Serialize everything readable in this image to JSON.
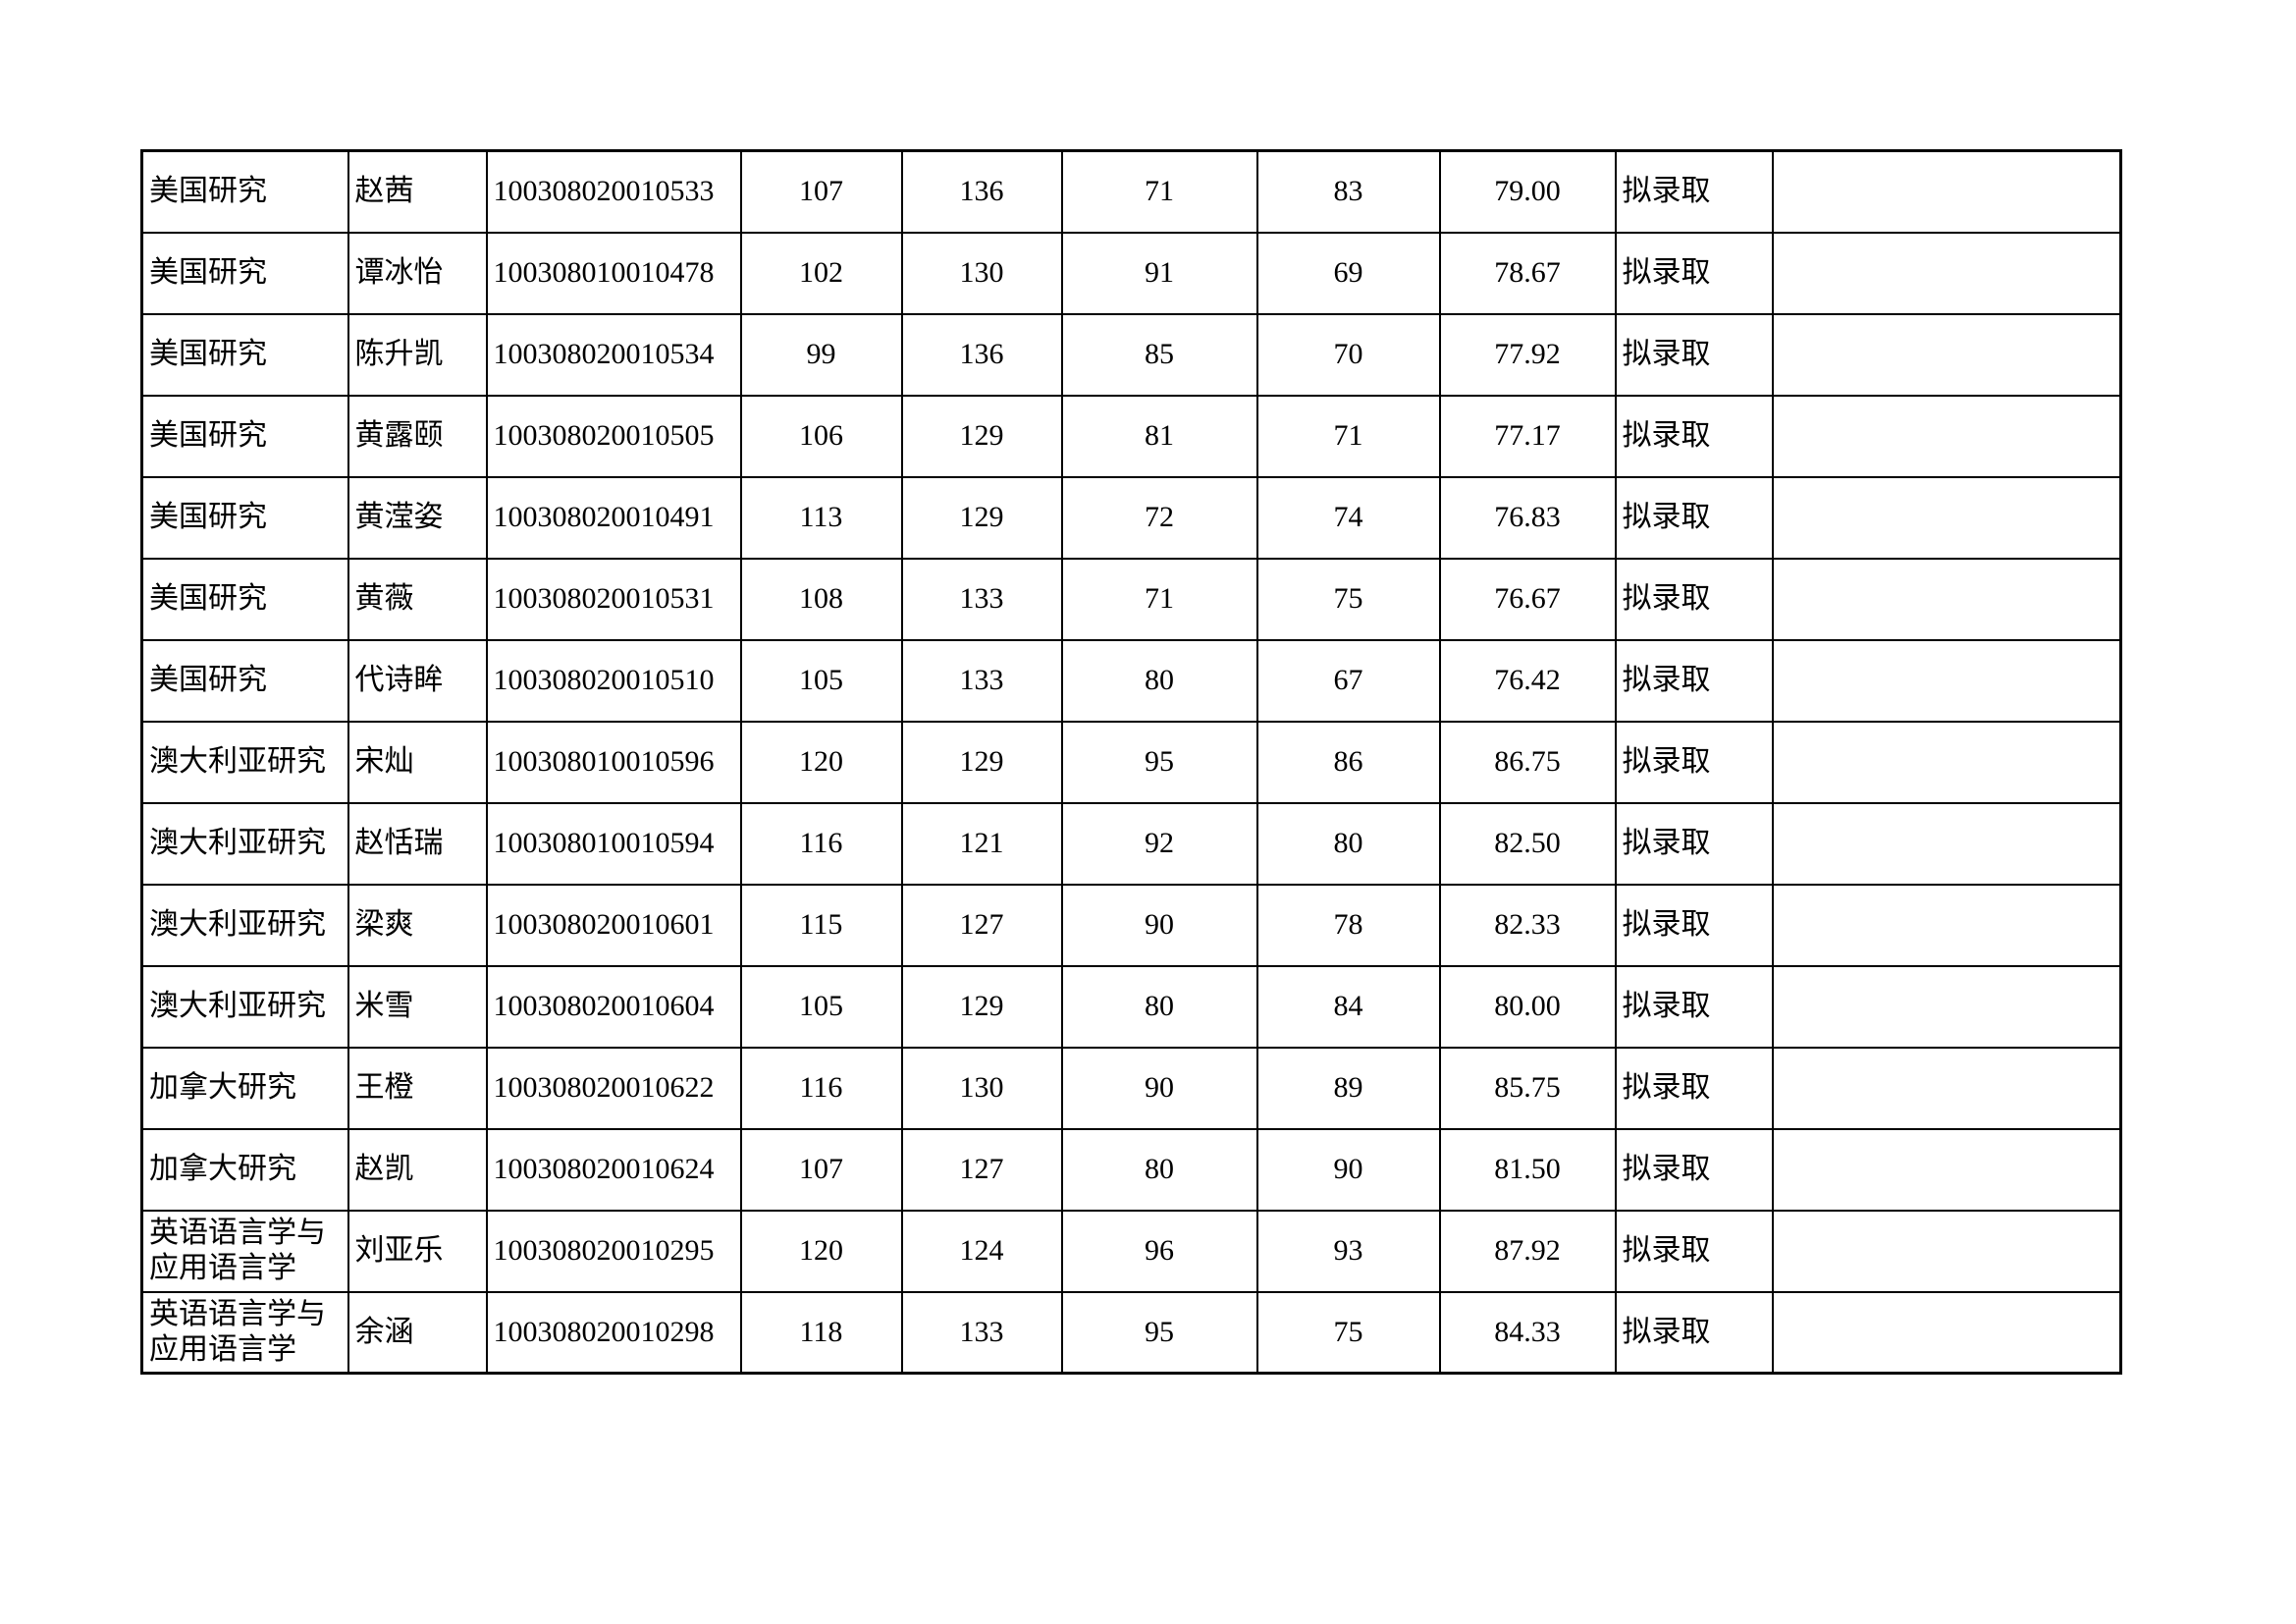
{
  "table": {
    "rows": [
      [
        "美国研究",
        "赵茜",
        "100308020010533",
        "107",
        "136",
        "71",
        "83",
        "79.00",
        "拟录取"
      ],
      [
        "美国研究",
        "谭冰怡",
        "100308010010478",
        "102",
        "130",
        "91",
        "69",
        "78.67",
        "拟录取"
      ],
      [
        "美国研究",
        "陈升凯",
        "100308020010534",
        "99",
        "136",
        "85",
        "70",
        "77.92",
        "拟录取"
      ],
      [
        "美国研究",
        "黄露颐",
        "100308020010505",
        "106",
        "129",
        "81",
        "71",
        "77.17",
        "拟录取"
      ],
      [
        "美国研究",
        "黄滢姿",
        "100308020010491",
        "113",
        "129",
        "72",
        "74",
        "76.83",
        "拟录取"
      ],
      [
        "美国研究",
        "黄薇",
        "100308020010531",
        "108",
        "133",
        "71",
        "75",
        "76.67",
        "拟录取"
      ],
      [
        "美国研究",
        "代诗眸",
        "100308020010510",
        "105",
        "133",
        "80",
        "67",
        "76.42",
        "拟录取"
      ],
      [
        "澳大利亚研究",
        "宋灿",
        "100308010010596",
        "120",
        "129",
        "95",
        "86",
        "86.75",
        "拟录取"
      ],
      [
        "澳大利亚研究",
        "赵恬瑞",
        "100308010010594",
        "116",
        "121",
        "92",
        "80",
        "82.50",
        "拟录取"
      ],
      [
        "澳大利亚研究",
        "梁爽",
        "100308020010601",
        "115",
        "127",
        "90",
        "78",
        "82.33",
        "拟录取"
      ],
      [
        "澳大利亚研究",
        "米雪",
        "100308020010604",
        "105",
        "129",
        "80",
        "84",
        "80.00",
        "拟录取"
      ],
      [
        "加拿大研究",
        "王橙",
        "100308020010622",
        "116",
        "130",
        "90",
        "89",
        "85.75",
        "拟录取"
      ],
      [
        "加拿大研究",
        "赵凯",
        "100308020010624",
        "107",
        "127",
        "80",
        "90",
        "81.50",
        "拟录取"
      ],
      [
        "英语语言学与应用语言学",
        "刘亚乐",
        "100308020010295",
        "120",
        "124",
        "96",
        "93",
        "87.92",
        "拟录取"
      ],
      [
        "英语语言学与应用语言学",
        "余涵",
        "100308020010298",
        "118",
        "133",
        "95",
        "75",
        "84.33",
        "拟录取"
      ]
    ]
  }
}
